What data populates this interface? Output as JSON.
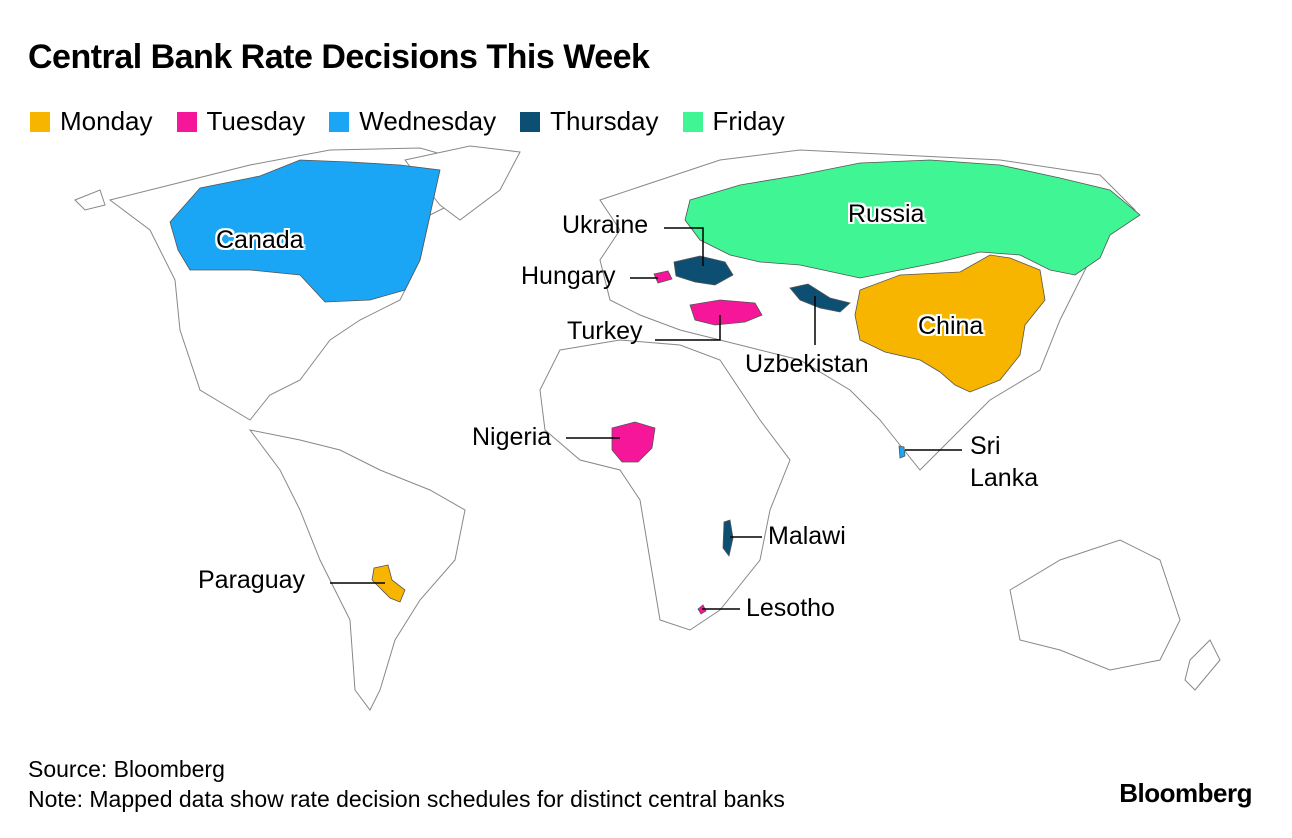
{
  "title": "Central Bank Rate Decisions This Week",
  "legend": [
    {
      "label": "Monday",
      "color": "#f7b500",
      "countries": [
        "Paraguay",
        "China"
      ]
    },
    {
      "label": "Tuesday",
      "color": "#f5169a",
      "countries": [
        "Hungary",
        "Turkey",
        "Nigeria",
        "Lesotho"
      ]
    },
    {
      "label": "Wednesday",
      "color": "#1ba5f5",
      "countries": [
        "Canada",
        "Sri Lanka"
      ]
    },
    {
      "label": "Thursday",
      "color": "#0d4f73",
      "countries": [
        "Ukraine",
        "Uzbekistan",
        "Malawi"
      ]
    },
    {
      "label": "Friday",
      "color": "#40f593",
      "countries": [
        "Russia"
      ]
    }
  ],
  "source": "Source: Bloomberg",
  "note": "Note: Mapped data show rate decision schedules for distinct central banks",
  "logo": "Bloomberg"
}
